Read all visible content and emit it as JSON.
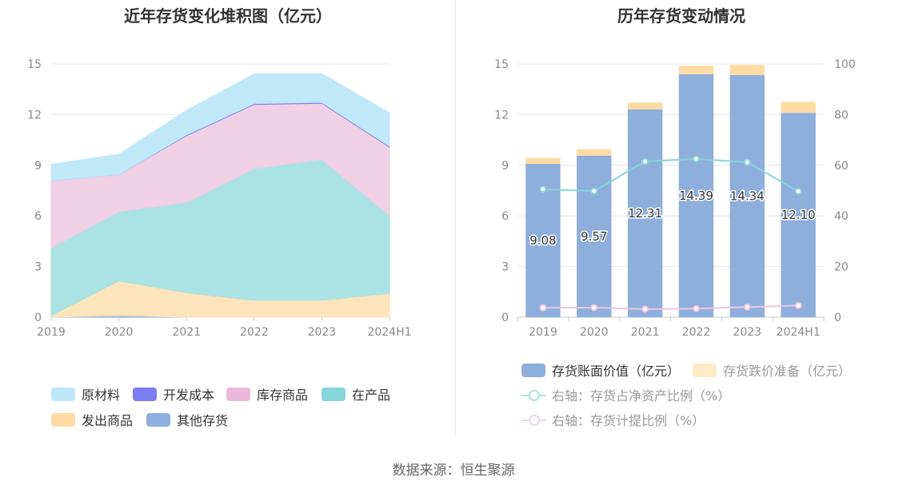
{
  "left_chart": {
    "title": "近年存货变化堆积图（亿元）",
    "chart_data": {
      "type": "area",
      "stacked": true,
      "categories": [
        "2019",
        "2020",
        "2021",
        "2022",
        "2023",
        "2024H1"
      ],
      "ylim": [
        0,
        15
      ],
      "yticks": [
        "0",
        "3",
        "6",
        "9",
        "12",
        "15"
      ],
      "series": [
        {
          "name": "其他存货",
          "color": "#8eaede",
          "values": [
            0.0,
            0.1,
            0.0,
            0.0,
            0.0,
            0.0
          ]
        },
        {
          "name": "发出商品",
          "color": "#fee3b6",
          "values": [
            0.1,
            2.05,
            1.45,
            1.0,
            1.0,
            1.42
          ]
        },
        {
          "name": "在产品",
          "color": "#a6e1e3",
          "values": [
            4.0,
            4.1,
            5.35,
            7.8,
            8.35,
            4.6
          ]
        },
        {
          "name": "库存商品",
          "color": "#eecde4",
          "values": [
            4.0,
            2.2,
            3.95,
            3.8,
            3.32,
            4.05
          ]
        },
        {
          "name": "开发成本",
          "color": "#7b7df0",
          "values": [
            0.0,
            0.0,
            0.05,
            0.05,
            0.05,
            0.05
          ]
        },
        {
          "name": "原材料",
          "color": "#bee7f9",
          "values": [
            0.95,
            1.2,
            1.45,
            1.75,
            1.7,
            1.98
          ]
        }
      ]
    },
    "legend": [
      "原材料",
      "开发成本",
      "库存商品",
      "在产品",
      "发出商品",
      "其他存货"
    ]
  },
  "right_chart": {
    "title": "历年存货变动情况",
    "chart_data": {
      "type": "bar",
      "categories": [
        "2019",
        "2020",
        "2021",
        "2022",
        "2023",
        "2024H1"
      ],
      "ylim": [
        0,
        15
      ],
      "yticks": [
        "0",
        "3",
        "6",
        "9",
        "12",
        "15"
      ],
      "y2lim": [
        0,
        100
      ],
      "y2ticks": [
        "0",
        "20",
        "40",
        "60",
        "80",
        "100"
      ],
      "series": [
        {
          "name": "存货账面价值（亿元）",
          "type": "bar",
          "color": "#8eaedc",
          "values": [
            9.08,
            9.57,
            12.31,
            14.39,
            14.34,
            12.1
          ],
          "labels": [
            "9.08",
            "9.57",
            "12.31",
            "14.39",
            "14.34",
            "12.10"
          ]
        },
        {
          "name": "存货跌价准备（亿元）",
          "type": "bar",
          "color": "#fedba3",
          "values": [
            0.35,
            0.38,
            0.4,
            0.5,
            0.6,
            0.65
          ]
        },
        {
          "name": "右轴：存货占净资产比例（%）",
          "type": "line",
          "axis": "right",
          "color": "#86d6da",
          "values": [
            50.5,
            49.8,
            61.5,
            62.5,
            61.2,
            49.7
          ]
        },
        {
          "name": "右轴：存货计提比例（%）",
          "type": "line",
          "axis": "right",
          "color": "#ecc5e1",
          "values": [
            3.7,
            3.8,
            3.2,
            3.4,
            4.0,
            4.6
          ]
        }
      ]
    }
  },
  "source": "数据来源：恒生聚源"
}
